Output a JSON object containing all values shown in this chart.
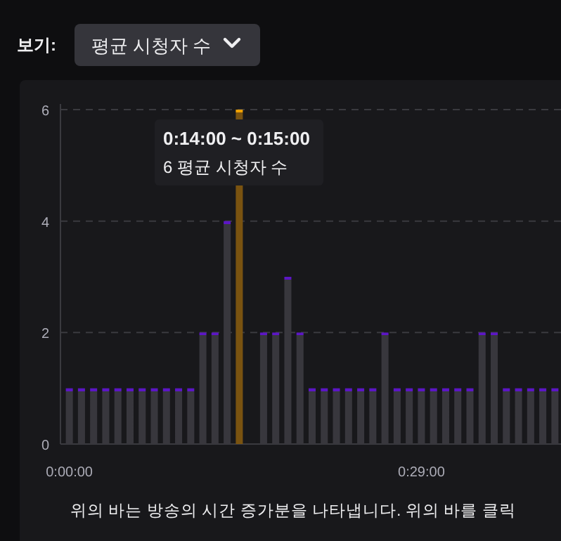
{
  "chart_data": {
    "type": "bar",
    "categories": [
      "0:00:00",
      null,
      null,
      null,
      null,
      null,
      null,
      null,
      null,
      null,
      null,
      null,
      null,
      null,
      null,
      null,
      null,
      null,
      null,
      null,
      null,
      null,
      null,
      null,
      null,
      null,
      null,
      null,
      null,
      "0:29:00",
      null,
      null,
      null,
      null,
      null,
      null,
      null,
      null,
      null,
      null,
      null
    ],
    "values": [
      1,
      1,
      1,
      1,
      1,
      1,
      1,
      1,
      1,
      1,
      1,
      2,
      2,
      4,
      6,
      null,
      2,
      2,
      3,
      2,
      1,
      1,
      1,
      1,
      1,
      1,
      2,
      1,
      1,
      1,
      1,
      1,
      1,
      1,
      2,
      2,
      1,
      1,
      1,
      1,
      1
    ],
    "colors": [
      "#38373d",
      "#38373d",
      "#38373d",
      "#38373d",
      "#38373d",
      "#38373d",
      "#38373d",
      "#38373d",
      "#38373d",
      "#38373d",
      "#38373d",
      "#38373d",
      "#38373d",
      "#38373d",
      "#7a5310",
      null,
      "#38373d",
      "#38373d",
      "#38373d",
      "#38373d",
      "#38373d",
      "#38373d",
      "#38373d",
      "#38373d",
      "#38373d",
      "#38373d",
      "#38373d",
      "#38373d",
      "#38373d",
      "#38373d",
      "#38373d",
      "#38373d",
      "#38373d",
      "#38373d",
      "#38373d",
      "#38373d",
      "#38373d",
      "#38373d",
      "#38373d",
      "#38373d",
      "#38373d"
    ],
    "ylim": [
      0,
      6
    ],
    "yticks": [
      0,
      2,
      4,
      6
    ],
    "grid": "y",
    "annotations": [
      "보기:",
      "평균 시청자 수",
      "0:14:00 ~ 0:15:00\n6 평균 시청자 수",
      "위의 바는 방송의 시간 증가분을 나타냅니다. 위의 바를 클릭"
    ]
  }
}
